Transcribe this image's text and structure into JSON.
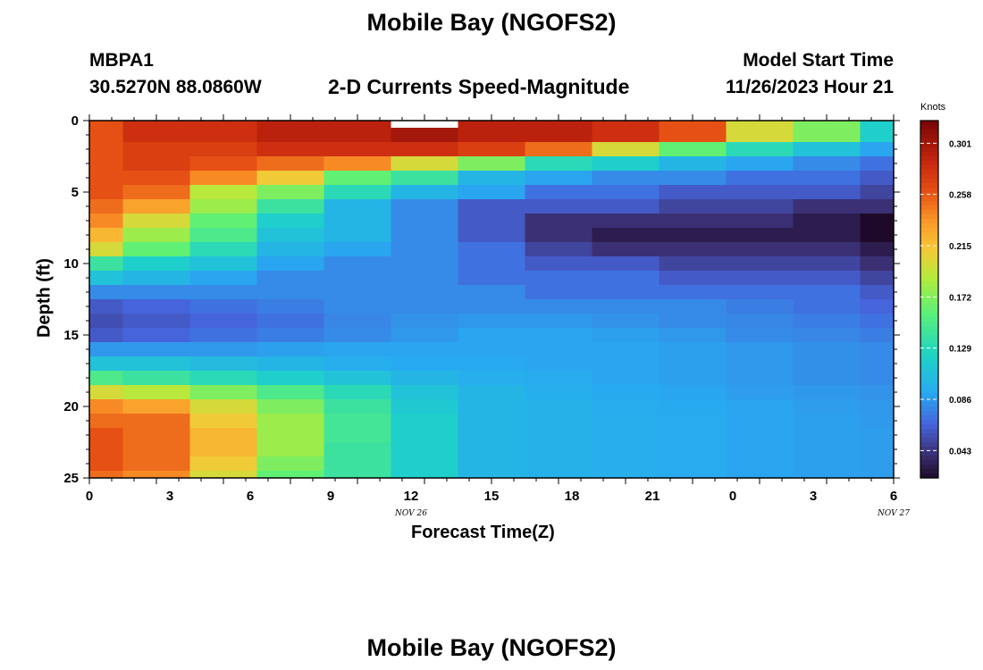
{
  "header": {
    "title": "Mobile Bay (NGOFS2)",
    "station_id": "MBPA1",
    "station_coords": "30.5270N  88.0860W",
    "plot_title": "2-D Currents Speed-Magnitude",
    "start_label": "Model Start Time",
    "start_value": "11/26/2023 Hour 21"
  },
  "footer": {
    "title": "Mobile Bay (NGOFS2)"
  },
  "chart_data": {
    "type": "heatmap",
    "title": "2-D Currents Speed-Magnitude",
    "xlabel": "Forecast Time(Z)",
    "ylabel": "Depth (ft)",
    "x_ticks": [
      "0",
      "3",
      "6",
      "9",
      "12",
      "15",
      "18",
      "21",
      "0",
      "3",
      "6"
    ],
    "date_labels": [
      {
        "tick_index": 4,
        "text": "NOV 26"
      },
      {
        "tick_index": 10,
        "text": "NOV 27"
      }
    ],
    "xlim": [
      0,
      36
    ],
    "y_ticks": [
      0,
      5,
      10,
      15,
      20,
      25
    ],
    "ylim": [
      0,
      25
    ],
    "colorbar": {
      "title": "Knots",
      "ticks": [
        "0.301",
        "0.258",
        "0.215",
        "0.172",
        "0.129",
        "0.086",
        "0.043"
      ],
      "range": [
        0.02,
        0.32
      ]
    },
    "cells": {
      "x_edges_hours": [
        0,
        1.5,
        4.5,
        7.5,
        10.5,
        13.5,
        16.5,
        19.5,
        22.5,
        25.5,
        28.5,
        31.5,
        34.5,
        36
      ],
      "depth_edges_ft": [
        0,
        1.5,
        2.5,
        3.5,
        4.5,
        5.5,
        6.5,
        7.5,
        8.5,
        9.5,
        10.5,
        11.5,
        12.5,
        13.5,
        14.5,
        15.5,
        16.5,
        17.5,
        18.5,
        19.5,
        20.5,
        21.5,
        22.5,
        23.5,
        24.5,
        25
      ],
      "values_knots": [
        [
          0.26,
          0.28,
          0.28,
          0.29,
          0.29,
          0.3,
          0.29,
          0.29,
          0.28,
          0.26,
          0.2,
          0.17,
          0.12
        ],
        [
          0.26,
          0.27,
          0.27,
          0.28,
          0.28,
          0.28,
          0.27,
          0.25,
          0.2,
          0.16,
          0.13,
          0.11,
          0.09
        ],
        [
          0.26,
          0.27,
          0.26,
          0.25,
          0.24,
          0.2,
          0.17,
          0.13,
          0.12,
          0.1,
          0.09,
          0.08,
          0.07
        ],
        [
          0.26,
          0.26,
          0.24,
          0.21,
          0.16,
          0.14,
          0.1,
          0.09,
          0.08,
          0.08,
          0.07,
          0.07,
          0.06
        ],
        [
          0.26,
          0.25,
          0.19,
          0.17,
          0.13,
          0.1,
          0.09,
          0.07,
          0.07,
          0.06,
          0.06,
          0.06,
          0.05
        ],
        [
          0.25,
          0.23,
          0.18,
          0.14,
          0.1,
          0.08,
          0.06,
          0.06,
          0.06,
          0.05,
          0.05,
          0.04,
          0.04
        ],
        [
          0.24,
          0.2,
          0.16,
          0.12,
          0.1,
          0.08,
          0.06,
          0.04,
          0.04,
          0.04,
          0.04,
          0.03,
          0.02
        ],
        [
          0.22,
          0.18,
          0.15,
          0.11,
          0.1,
          0.08,
          0.06,
          0.04,
          0.03,
          0.03,
          0.03,
          0.03,
          0.02
        ],
        [
          0.2,
          0.16,
          0.13,
          0.1,
          0.09,
          0.08,
          0.07,
          0.05,
          0.04,
          0.04,
          0.04,
          0.04,
          0.03
        ],
        [
          0.14,
          0.12,
          0.11,
          0.09,
          0.08,
          0.08,
          0.07,
          0.06,
          0.06,
          0.05,
          0.05,
          0.05,
          0.04
        ],
        [
          0.11,
          0.1,
          0.09,
          0.08,
          0.08,
          0.08,
          0.07,
          0.07,
          0.07,
          0.06,
          0.06,
          0.06,
          0.05
        ],
        [
          0.08,
          0.08,
          0.08,
          0.08,
          0.08,
          0.08,
          0.08,
          0.07,
          0.07,
          0.07,
          0.07,
          0.07,
          0.06
        ],
        [
          0.06,
          0.065,
          0.07,
          0.075,
          0.08,
          0.08,
          0.08,
          0.08,
          0.08,
          0.08,
          0.075,
          0.07,
          0.065
        ],
        [
          0.055,
          0.06,
          0.065,
          0.07,
          0.078,
          0.083,
          0.085,
          0.085,
          0.083,
          0.08,
          0.078,
          0.075,
          0.07
        ],
        [
          0.06,
          0.065,
          0.07,
          0.075,
          0.08,
          0.085,
          0.09,
          0.09,
          0.088,
          0.085,
          0.08,
          0.078,
          0.075
        ],
        [
          0.085,
          0.085,
          0.085,
          0.088,
          0.09,
          0.09,
          0.09,
          0.09,
          0.09,
          0.088,
          0.085,
          0.082,
          0.08
        ],
        [
          0.11,
          0.11,
          0.105,
          0.1,
          0.095,
          0.092,
          0.092,
          0.09,
          0.09,
          0.088,
          0.085,
          0.082,
          0.08
        ],
        [
          0.15,
          0.14,
          0.13,
          0.12,
          0.11,
          0.1,
          0.095,
          0.093,
          0.09,
          0.088,
          0.085,
          0.082,
          0.08
        ],
        [
          0.2,
          0.19,
          0.17,
          0.15,
          0.13,
          0.11,
          0.1,
          0.095,
          0.092,
          0.09,
          0.087,
          0.085,
          0.083
        ],
        [
          0.24,
          0.23,
          0.2,
          0.17,
          0.14,
          0.115,
          0.1,
          0.097,
          0.094,
          0.092,
          0.09,
          0.087,
          0.085
        ],
        [
          0.25,
          0.25,
          0.21,
          0.18,
          0.145,
          0.12,
          0.1,
          0.097,
          0.095,
          0.093,
          0.09,
          0.088,
          0.086
        ],
        [
          0.26,
          0.25,
          0.22,
          0.18,
          0.145,
          0.12,
          0.1,
          0.097,
          0.095,
          0.093,
          0.09,
          0.088,
          0.087
        ],
        [
          0.26,
          0.25,
          0.22,
          0.18,
          0.14,
          0.12,
          0.1,
          0.097,
          0.095,
          0.093,
          0.09,
          0.088,
          0.087
        ],
        [
          0.26,
          0.25,
          0.21,
          0.17,
          0.14,
          0.12,
          0.1,
          0.097,
          0.095,
          0.093,
          0.09,
          0.088,
          0.087
        ],
        [
          0.25,
          0.24,
          0.2,
          0.16,
          0.14,
          0.12,
          0.1,
          0.097,
          0.095,
          0.093,
          0.09,
          0.088,
          0.087
        ]
      ]
    },
    "missing_marker": {
      "x_hours": [
        13.5,
        16.5
      ],
      "depth_ft": [
        0,
        0.5
      ]
    }
  }
}
